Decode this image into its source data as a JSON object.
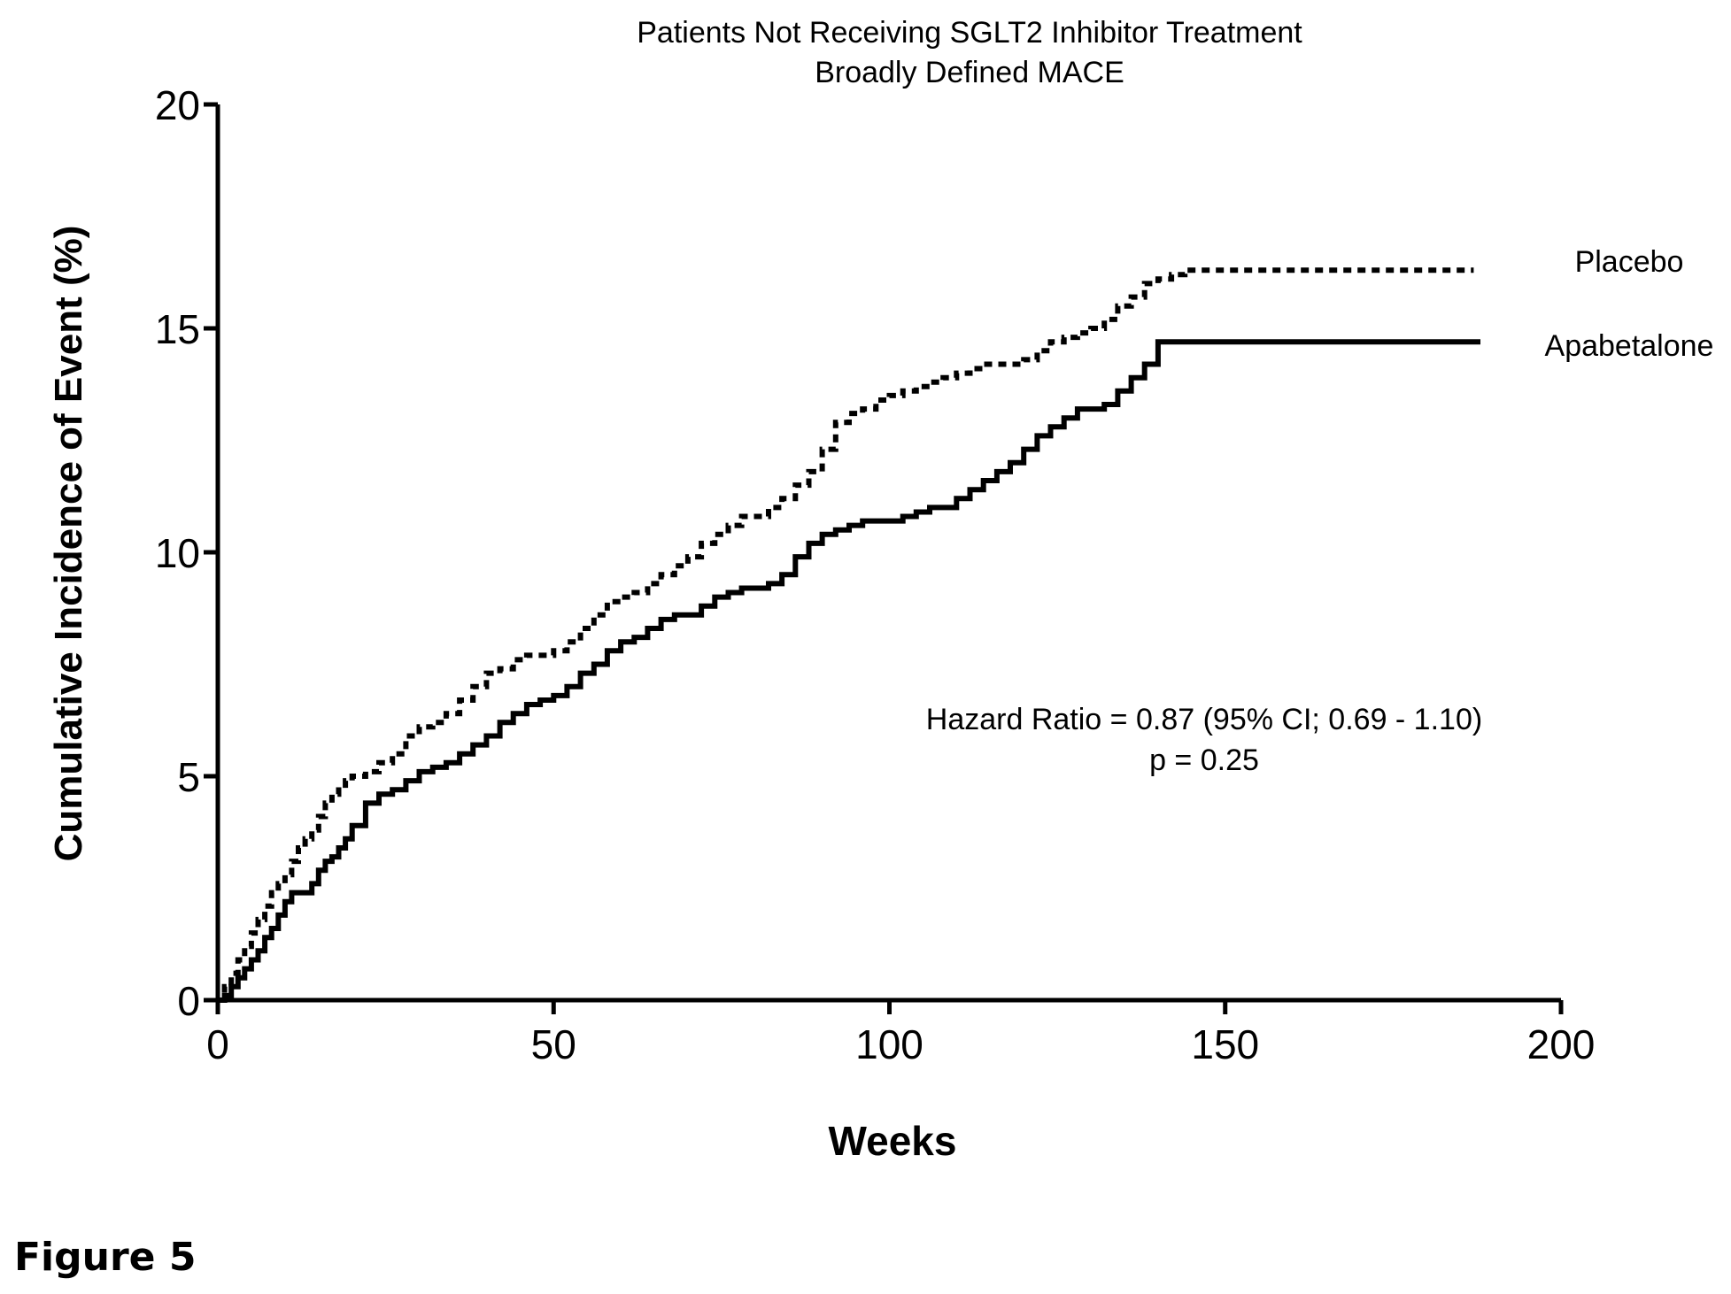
{
  "figure_label": "Figure 5",
  "chart_data": {
    "type": "line",
    "title": "Patients Not Receiving SGLT2  Inhibitor  Treatment",
    "subtitle": "Broadly Defined MACE",
    "xlabel": "Weeks",
    "ylabel": "Cumulative Incidence of Event (%)",
    "xlim": [
      0,
      200
    ],
    "ylim": [
      0,
      20
    ],
    "x_ticks": [
      "0",
      "50",
      "100",
      "150",
      "200"
    ],
    "y_ticks": [
      "0",
      "5",
      "10",
      "15",
      "20"
    ],
    "grid": false,
    "annotation": {
      "line1": "Hazard Ratio = 0.87 (95% CI;  0.69 - 1.10)",
      "line2": "p = 0.25"
    },
    "series": [
      {
        "name": "Placebo",
        "style": "dashed",
        "color": "#000000",
        "x": [
          0,
          1,
          2,
          3,
          4,
          5,
          6,
          7,
          8,
          9,
          10,
          11,
          12,
          13,
          14,
          15,
          16,
          17,
          18,
          19,
          20,
          22,
          24,
          26,
          28,
          30,
          32,
          34,
          36,
          38,
          40,
          42,
          44,
          46,
          48,
          50,
          52,
          54,
          56,
          58,
          60,
          62,
          64,
          66,
          68,
          70,
          72,
          74,
          76,
          78,
          80,
          82,
          84,
          86,
          88,
          90,
          92,
          94,
          96,
          98,
          100,
          102,
          104,
          106,
          108,
          110,
          112,
          114,
          116,
          118,
          120,
          122,
          124,
          126,
          128,
          130,
          132,
          134,
          136,
          138,
          140,
          142,
          144,
          146,
          150,
          160,
          170,
          180,
          187
        ],
        "y": [
          0.0,
          0.3,
          0.6,
          0.9,
          1.2,
          1.5,
          1.8,
          2.1,
          2.4,
          2.6,
          2.8,
          3.1,
          3.4,
          3.6,
          3.8,
          4.1,
          4.4,
          4.6,
          4.8,
          4.9,
          5.0,
          5.1,
          5.3,
          5.5,
          5.9,
          6.1,
          6.2,
          6.4,
          6.7,
          7.0,
          7.3,
          7.4,
          7.6,
          7.7,
          7.7,
          7.8,
          8.0,
          8.3,
          8.6,
          8.9,
          9.0,
          9.1,
          9.3,
          9.5,
          9.7,
          9.9,
          10.2,
          10.4,
          10.6,
          10.8,
          10.8,
          11.0,
          11.2,
          11.5,
          11.8,
          12.3,
          12.9,
          13.1,
          13.2,
          13.4,
          13.5,
          13.6,
          13.7,
          13.8,
          13.9,
          14.0,
          14.1,
          14.2,
          14.2,
          14.2,
          14.3,
          14.5,
          14.7,
          14.8,
          14.9,
          15.0,
          15.2,
          15.5,
          15.7,
          16.0,
          16.1,
          16.2,
          16.3,
          16.3,
          16.3,
          16.3,
          16.3,
          16.3,
          16.3
        ]
      },
      {
        "name": "Apabetalone",
        "style": "solid",
        "color": "#000000",
        "x": [
          0,
          1,
          2,
          3,
          4,
          5,
          6,
          7,
          8,
          9,
          10,
          11,
          12,
          13,
          14,
          15,
          16,
          17,
          18,
          19,
          20,
          22,
          24,
          26,
          28,
          30,
          32,
          34,
          36,
          38,
          40,
          42,
          44,
          46,
          48,
          50,
          52,
          54,
          56,
          58,
          60,
          62,
          64,
          66,
          68,
          70,
          72,
          74,
          76,
          78,
          80,
          82,
          84,
          86,
          88,
          90,
          92,
          94,
          96,
          98,
          100,
          102,
          104,
          106,
          108,
          110,
          112,
          114,
          116,
          118,
          120,
          122,
          124,
          126,
          128,
          130,
          132,
          134,
          136,
          138,
          140,
          150,
          160,
          170,
          180,
          188
        ],
        "y": [
          0.0,
          0.1,
          0.3,
          0.5,
          0.7,
          0.9,
          1.1,
          1.4,
          1.6,
          1.9,
          2.2,
          2.4,
          2.4,
          2.4,
          2.6,
          2.9,
          3.1,
          3.2,
          3.4,
          3.6,
          3.9,
          4.4,
          4.6,
          4.7,
          4.9,
          5.1,
          5.2,
          5.3,
          5.5,
          5.7,
          5.9,
          6.2,
          6.4,
          6.6,
          6.7,
          6.8,
          7.0,
          7.3,
          7.5,
          7.8,
          8.0,
          8.1,
          8.3,
          8.5,
          8.6,
          8.6,
          8.8,
          9.0,
          9.1,
          9.2,
          9.2,
          9.3,
          9.5,
          9.9,
          10.2,
          10.4,
          10.5,
          10.6,
          10.7,
          10.7,
          10.7,
          10.8,
          10.9,
          11.0,
          11.0,
          11.2,
          11.4,
          11.6,
          11.8,
          12.0,
          12.3,
          12.6,
          12.8,
          13.0,
          13.2,
          13.2,
          13.3,
          13.6,
          13.9,
          14.2,
          14.7,
          14.7,
          14.7,
          14.7,
          14.7,
          14.7
        ]
      }
    ]
  }
}
